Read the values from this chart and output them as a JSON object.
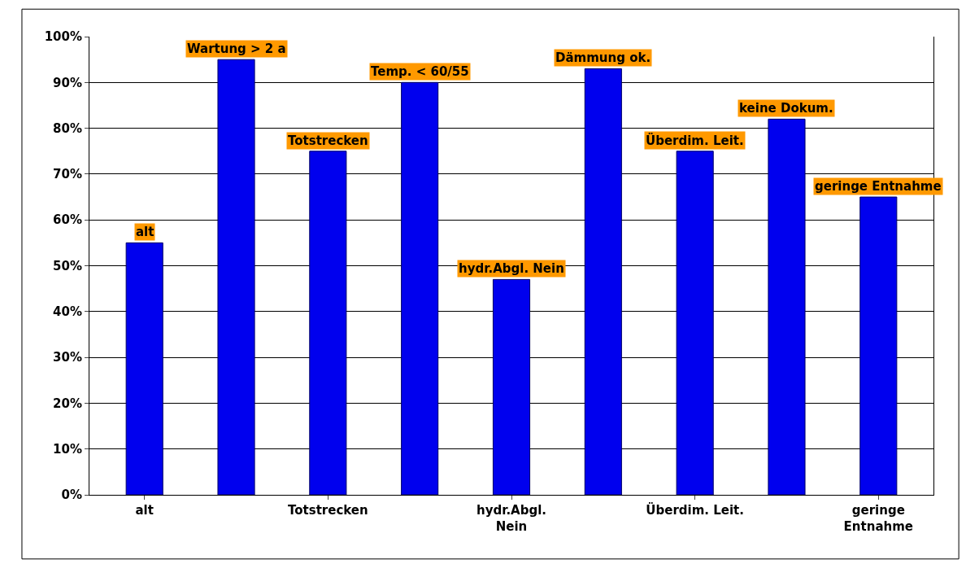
{
  "chart_data": {
    "type": "bar",
    "categories": [
      "alt",
      null,
      "Totstrecken",
      null,
      "hydr.Abgl. Nein",
      null,
      "Überdim. Leit.",
      null,
      "geringe Entnahme"
    ],
    "values": [
      55,
      95,
      75,
      90,
      47,
      93,
      75,
      82,
      65
    ],
    "value_labels": [
      "alt",
      "Wartung > 2 a",
      "Totstrecken",
      "Temp. < 60/55",
      "hydr.Abgl. Nein",
      "Dämmung ok.",
      "Überdim. Leit.",
      "keine Dokum.",
      "geringe Entnahme"
    ],
    "color": "#0000ee",
    "ylim": [
      0,
      100
    ],
    "yticks": [
      {
        "value": 0,
        "label": "0%"
      },
      {
        "value": 10,
        "label": "10%"
      },
      {
        "value": 20,
        "label": "20%"
      },
      {
        "value": 30,
        "label": "30%"
      },
      {
        "value": 40,
        "label": "40%"
      },
      {
        "value": 50,
        "label": "50%"
      },
      {
        "value": 60,
        "label": "60%"
      },
      {
        "value": 70,
        "label": "70%"
      },
      {
        "value": 80,
        "label": "80%"
      },
      {
        "value": 90,
        "label": "90%"
      },
      {
        "value": 100,
        "label": "100%"
      }
    ],
    "grid": "y",
    "legend": false
  }
}
